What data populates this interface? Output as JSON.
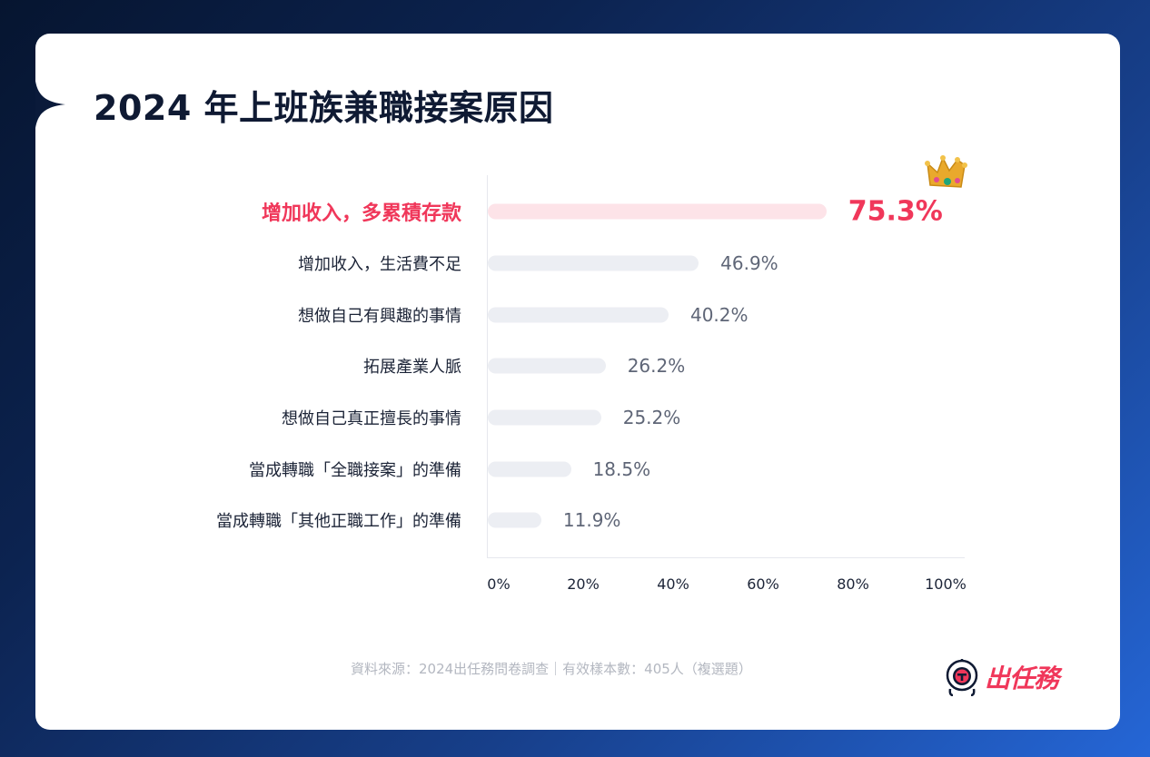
{
  "title": "2024 年上班族兼職接案原因",
  "chart_data": {
    "type": "bar",
    "orientation": "horizontal",
    "title": "2024 年上班族兼職接案原因",
    "categories": [
      "增加收入，多累積存款",
      "增加收入，生活費不足",
      "想做自己有興趣的事情",
      "拓展產業人脈",
      "想做自己真正擅長的事情",
      "當成轉職「全職接案」的準備",
      "當成轉職「其他正職工作」的準備"
    ],
    "values": [
      75.3,
      46.9,
      40.2,
      26.2,
      25.2,
      18.5,
      11.9
    ],
    "value_labels": [
      "75.3%",
      "46.9%",
      "40.2%",
      "26.2%",
      "25.2%",
      "18.5%",
      "11.9%"
    ],
    "xlabel": "",
    "ylabel": "",
    "xlim": [
      0,
      100
    ],
    "x_ticks": [
      "0%",
      "20%",
      "40%",
      "60%",
      "80%",
      "100%"
    ],
    "grid": false,
    "highlight_index": 0,
    "highlight_icon": "crown-icon",
    "colors": {
      "highlight": "#f0375a",
      "highlight_bar": "#fde3e8",
      "bar": "#eceef3",
      "value_text": "#5f6677"
    }
  },
  "footer": {
    "source": "資料來源：2024出任務問卷調查｜有效樣本數：405人（複選題）"
  },
  "brand": {
    "name": "出任務",
    "icon": "astronaut-helmet-icon",
    "color": "#f0375a"
  }
}
